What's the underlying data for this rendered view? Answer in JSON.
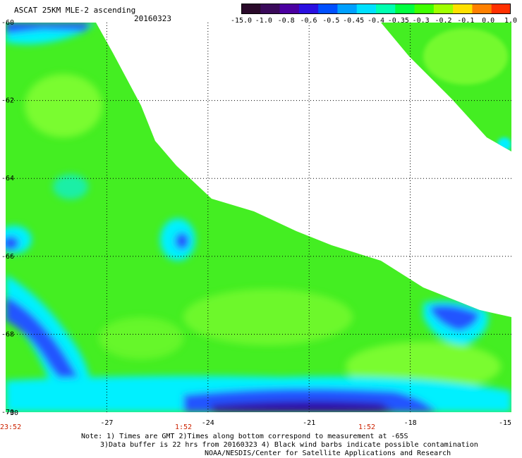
{
  "header": {
    "title": "ASCAT 25KM MLE-2 ascending",
    "date": "20160323"
  },
  "colorbar": {
    "labels": [
      "-15.0",
      "-1.0",
      "-0.8",
      "-0.6",
      "-0.5",
      "-0.45",
      "-0.4",
      "-0.35",
      "-0.3",
      "-0.2",
      "-0.1",
      "0.0",
      "1.0"
    ],
    "colors": [
      "#2a0a2a",
      "#3a0a5a",
      "#4b00a0",
      "#2a10e0",
      "#0050ff",
      "#00a0ff",
      "#00e0ff",
      "#00ffb0",
      "#00ff40",
      "#40ff00",
      "#a0ff00",
      "#ffe000",
      "#ff8000",
      "#ff3000"
    ]
  },
  "map": {
    "lat_labels": [
      "-60",
      "-62",
      "-64",
      "-66",
      "-68",
      "-70"
    ],
    "lon_labels": [
      "-27",
      "-24",
      "-21",
      "-18",
      "-15"
    ],
    "corner_lon_label": "-30",
    "lat_range": [
      -70,
      -60
    ],
    "lon_range": [
      -30,
      -15
    ],
    "time_labels": [
      "23:52",
      "1:52",
      "1:52"
    ],
    "colors": {
      "field_green": "#44ee22",
      "field_light": "#88ff33",
      "water_cyan": "#00f0ff",
      "water_blue": "#2255ff",
      "water_deep": "#3300aa",
      "time_label": "#cc2200"
    }
  },
  "notes": {
    "line1": "Note: 1) Times are GMT 2)Times along bottom correspond to measurement at -65S",
    "line2": "3)Data buffer is 22 hrs from 20160323 4) Black wind barbs indicate possible contamination",
    "line3": "NOAA/NESDIS/Center for Satellite Applications and Research"
  }
}
